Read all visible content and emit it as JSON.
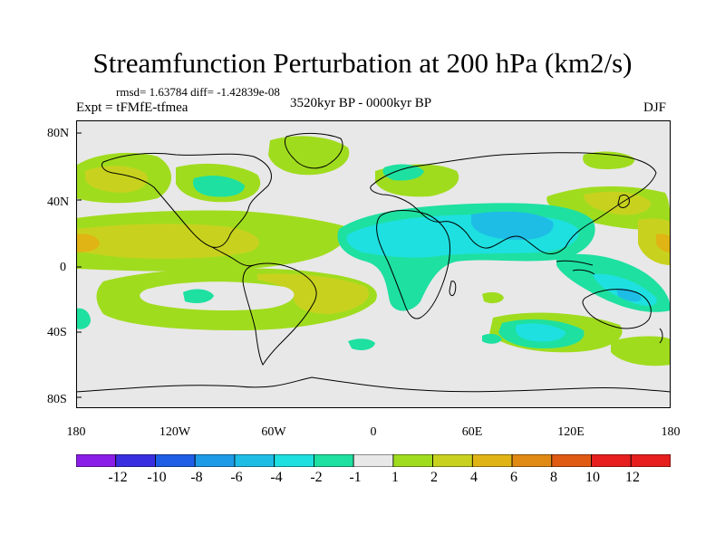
{
  "title": "Streamfunction Perturbation at 200 hPa (km2/s)",
  "stats": "rmsd= 1.63784 diff= -1.42839e-08",
  "experiment": "Expt = tFMfE-tfmea",
  "period": "3520kyr BP - 0000kyr BP",
  "season": "DJF",
  "lat_labels": [
    "80N",
    "40N",
    "0",
    "40S",
    "80S"
  ],
  "lon_labels": [
    "180",
    "120W",
    "60W",
    "0",
    "60E",
    "120E",
    "180"
  ],
  "colorbar": {
    "labels": [
      "-12",
      "-10",
      "-8",
      "-6",
      "-4",
      "-2",
      "-1",
      "1",
      "2",
      "4",
      "6",
      "8",
      "10",
      "12"
    ],
    "colors": [
      "#8a1ee6",
      "#3a2fe0",
      "#1e5ee6",
      "#1e9be6",
      "#1ebde6",
      "#1ee0e0",
      "#1ee0a0",
      "#e8e8e8",
      "#a0dc1e",
      "#c8d21e",
      "#e0b414",
      "#e08a14",
      "#e05a14",
      "#e61e1e"
    ]
  },
  "colors": {
    "background_field": "#e8e8e8",
    "pos_weak": "#a0dc1e",
    "pos_mid": "#c8d21e",
    "pos_strong": "#e0b414",
    "pos_stronger": "#e08a14",
    "neg_weak": "#1ee0a0",
    "neg_mid": "#1ee0e0",
    "neg_strong": "#1ebde6"
  }
}
